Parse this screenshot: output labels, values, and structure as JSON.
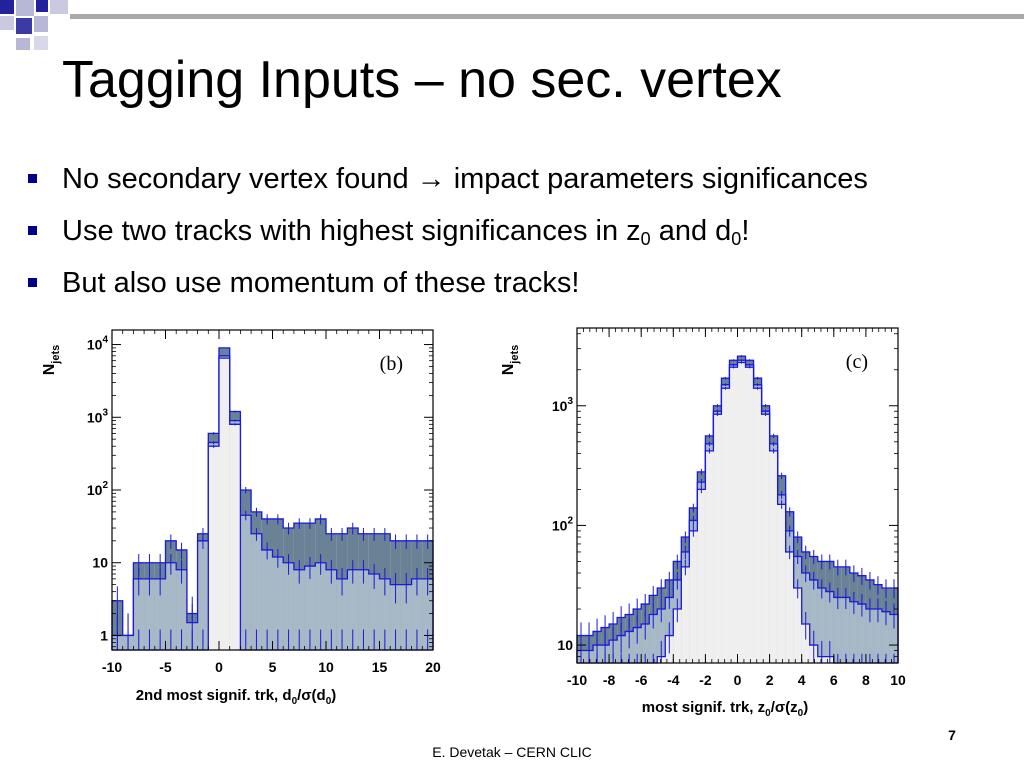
{
  "slide": {
    "title": "Tagging Inputs – no sec. vertex",
    "bullets": [
      {
        "text": "No secondary vertex found → impact parameters significances"
      },
      {
        "pre": "Use two tracks with highest significances in z",
        "sub1": "0",
        "mid": " and d",
        "sub2": "0",
        "post": "!"
      },
      {
        "text": "But also use momentum of these tracks!"
      }
    ],
    "footer": "E. Devetak – CERN CLIC",
    "page_number": "7",
    "colors": {
      "bullet": "#00008b",
      "deco_blue": "#22229a",
      "deco_light": "#b7b7d6",
      "bar": "#999999"
    }
  },
  "chart_data": [
    {
      "type": "histogram",
      "panel_label": "(b)",
      "ylabel_main": "N",
      "ylabel_sub": "jets",
      "xlabel_parts": [
        "2nd most signif. trk, d",
        "0",
        "/σ(d",
        "0",
        ")"
      ],
      "xlim": [
        -10,
        20
      ],
      "ylim_log10": [
        -0.2,
        4.2
      ],
      "log_y": true,
      "xticks": [
        -10,
        -5,
        0,
        5,
        10,
        15,
        20
      ],
      "xtick_labels": [
        "-10",
        "-5",
        "0",
        "5",
        "10",
        "15",
        "20"
      ],
      "yticks": [
        {
          "value": 1,
          "label": "1"
        },
        {
          "value": 10,
          "label": "10"
        },
        {
          "value": 100,
          "label": "10",
          "exp": "2"
        },
        {
          "value": 1000,
          "label": "10",
          "exp": "3"
        },
        {
          "value": 10000,
          "label": "10",
          "exp": "4"
        }
      ],
      "bin_edges": [
        -10,
        -9,
        -8,
        -7,
        -6,
        -5,
        -4,
        -3,
        -2,
        -1,
        0,
        1,
        2,
        3,
        4,
        5,
        6,
        7,
        8,
        9,
        10,
        11,
        12,
        13,
        14,
        15,
        16,
        17,
        18,
        19,
        20
      ],
      "series": [
        {
          "fill": "#6a8296",
          "values": [
            3,
            1,
            10,
            10,
            10,
            20,
            15,
            2,
            25,
            600,
            9000,
            1200,
            100,
            50,
            40,
            40,
            30,
            35,
            35,
            40,
            25,
            25,
            30,
            25,
            25,
            25,
            20,
            20,
            20,
            20
          ]
        },
        {
          "fill": "#a7b8c6",
          "values": [
            1,
            1,
            6,
            6,
            6,
            10,
            8,
            1.5,
            20,
            450,
            7000,
            900,
            45,
            25,
            15,
            12,
            10,
            8,
            9,
            10,
            8,
            6,
            8,
            8,
            7,
            6,
            5,
            5,
            6,
            6
          ]
        },
        {
          "fill": "#efefef",
          "values": [
            0.5,
            0.5,
            0.5,
            0.5,
            0.5,
            0.5,
            0.5,
            0.5,
            0.5,
            400,
            6500,
            800,
            0.5,
            0.5,
            0.5,
            0.5,
            0.5,
            0.5,
            0.5,
            0.5,
            0.5,
            0.5,
            0.5,
            0.5,
            0.5,
            0.5,
            0.5,
            0.5,
            0.5,
            0.5
          ]
        }
      ]
    },
    {
      "type": "histogram",
      "panel_label": "(c)",
      "ylabel_main": "N",
      "ylabel_sub": "jets",
      "xlabel_parts": [
        "most signif. trk, z",
        "0",
        "/σ(z",
        "0",
        ")"
      ],
      "xlim": [
        -10,
        10
      ],
      "ylim_log10": [
        0.85,
        3.65
      ],
      "log_y": true,
      "xticks": [
        -10,
        -8,
        -6,
        -4,
        -2,
        0,
        2,
        4,
        6,
        8,
        10
      ],
      "xtick_labels": [
        "-10",
        "-8",
        "-6",
        "-4",
        "-2",
        "0",
        "2",
        "4",
        "6",
        "8",
        "10"
      ],
      "yticks": [
        {
          "value": 10,
          "label": "10"
        },
        {
          "value": 100,
          "label": "10",
          "exp": "2"
        },
        {
          "value": 1000,
          "label": "10",
          "exp": "3"
        }
      ],
      "bin_edges": [
        -10,
        -9.5,
        -9,
        -8.5,
        -8,
        -7.5,
        -7,
        -6.5,
        -6,
        -5.5,
        -5,
        -4.5,
        -4,
        -3.5,
        -3,
        -2.5,
        -2,
        -1.5,
        -1,
        -0.5,
        0,
        0.5,
        1,
        1.5,
        2,
        2.5,
        3,
        3.5,
        4,
        4.5,
        5,
        5.5,
        6,
        6.5,
        7,
        7.5,
        8,
        8.5,
        9,
        9.5,
        10
      ],
      "series": [
        {
          "fill": "#6a8296",
          "values": [
            12,
            12,
            13,
            14,
            15,
            17,
            18,
            20,
            22,
            26,
            30,
            35,
            50,
            80,
            140,
            280,
            560,
            1000,
            1700,
            2400,
            2600,
            2400,
            1700,
            1000,
            560,
            260,
            130,
            80,
            60,
            55,
            50,
            50,
            45,
            45,
            40,
            38,
            35,
            32,
            30,
            30
          ]
        },
        {
          "fill": "#a7b8c6",
          "values": [
            9,
            9,
            10,
            10,
            11,
            12,
            13,
            14,
            15,
            18,
            20,
            25,
            35,
            60,
            110,
            230,
            480,
            900,
            1500,
            2200,
            2400,
            2200,
            1500,
            900,
            480,
            180,
            90,
            55,
            40,
            35,
            30,
            28,
            25,
            25,
            23,
            22,
            20,
            20,
            19,
            18
          ]
        },
        {
          "fill": "#efefef",
          "values": [
            6,
            6,
            6,
            6,
            6,
            6,
            6,
            6,
            6,
            6,
            8,
            12,
            20,
            45,
            90,
            200,
            420,
            850,
            1400,
            2100,
            2300,
            2100,
            1400,
            850,
            420,
            150,
            60,
            30,
            15,
            10,
            8,
            8,
            6,
            6,
            6,
            6,
            6,
            6,
            6,
            6
          ]
        }
      ]
    }
  ]
}
